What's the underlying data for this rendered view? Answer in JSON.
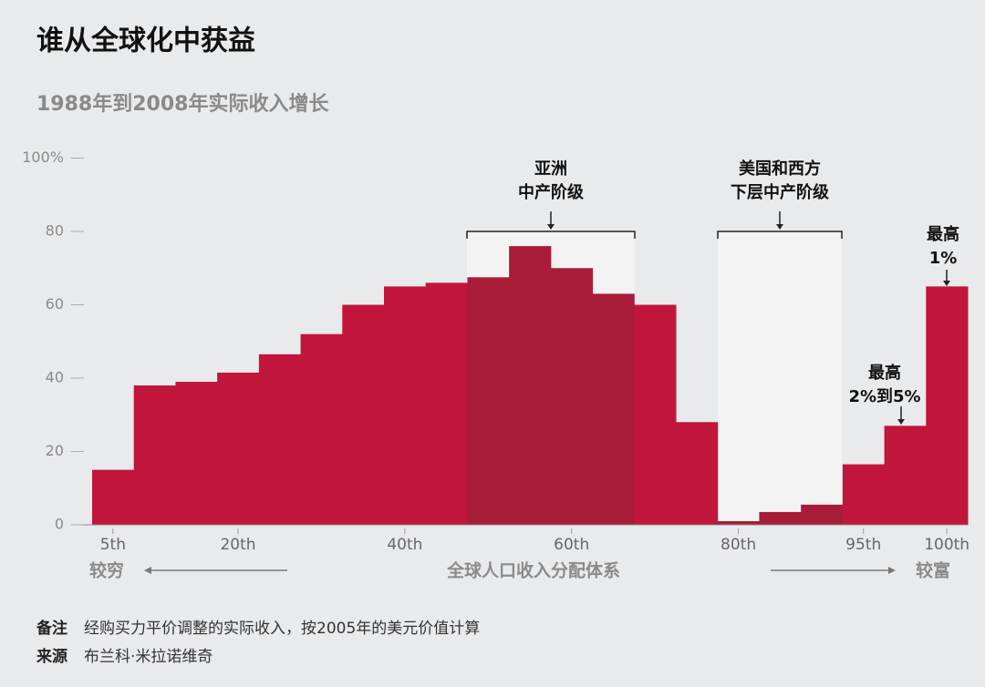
{
  "chart_data": {
    "type": "bar",
    "title": "谁从全球化中获益",
    "subtitle": "1988年到2008年实际收入增长",
    "categories": [
      "5th",
      null,
      null,
      "20th",
      null,
      null,
      null,
      "40th",
      null,
      null,
      null,
      "60th",
      null,
      null,
      null,
      "80th",
      null,
      null,
      "95th",
      null,
      "100th"
    ],
    "values": [
      15,
      38,
      39,
      41.5,
      46.5,
      52,
      60,
      65,
      66,
      67.5,
      76,
      70,
      63,
      60,
      28,
      1,
      3.5,
      5.5,
      16.5,
      27,
      65
    ],
    "colors": [
      "#c0163b",
      "#c0163b",
      "#c0163b",
      "#c0163b",
      "#c0163b",
      "#c0163b",
      "#c0163b",
      "#c0163b",
      "#c0163b",
      "#a81c39",
      "#a81c39",
      "#a81c39",
      "#a81c39",
      "#c0163b",
      "#c0163b",
      "#a81c39",
      "#a81c39",
      "#a81c39",
      "#c0163b",
      "#c0163b",
      "#c0163b"
    ],
    "ylim": [
      0,
      100
    ],
    "yticks": [
      0,
      20,
      40,
      60,
      80,
      {
        "value": 100,
        "label": "100%"
      }
    ],
    "annotations": [
      [
        "亚洲",
        "中产阶级"
      ],
      [
        "美国和西方",
        "下层中产阶级"
      ],
      [
        "最高",
        "2%到5%"
      ],
      [
        "最高",
        "1%"
      ]
    ],
    "x_label_left": "较穷",
    "x_label": "全球人口收入分配体系",
    "x_label_right": "较富"
  },
  "notes": [
    {
      "label": "备注",
      "text": "经购买力平价调整的实际收入，按2005年的美元价值计算"
    },
    {
      "label": "来源",
      "text": "布兰科·米拉诺维奇"
    }
  ]
}
